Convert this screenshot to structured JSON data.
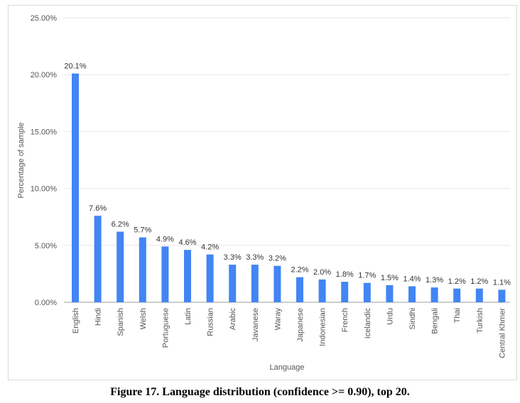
{
  "caption": "Figure 17. Language distribution (confidence >= 0.90), top 20.",
  "chart_data": {
    "type": "bar",
    "xlabel": "Language",
    "ylabel": "Percentage of sample",
    "ylim": [
      0,
      25
    ],
    "yticks": [
      "0.00%",
      "5.00%",
      "10.00%",
      "15.00%",
      "20.00%",
      "25.00%"
    ],
    "grid": true,
    "bar_color": "#4285f4",
    "categories": [
      "English",
      "Hindi",
      "Spanish",
      "Welsh",
      "Portuguese",
      "Latin",
      "Russian",
      "Arabic",
      "Javanese",
      "Waray",
      "Japanese",
      "Indonesian",
      "French",
      "Icelandic",
      "Urdu",
      "Sindhi",
      "Bengali",
      "Thai",
      "Turkish",
      "Central Khmer"
    ],
    "values": [
      20.1,
      7.6,
      6.2,
      5.7,
      4.9,
      4.6,
      4.2,
      3.3,
      3.3,
      3.2,
      2.2,
      2.0,
      1.8,
      1.7,
      1.5,
      1.4,
      1.3,
      1.2,
      1.2,
      1.1
    ],
    "data_labels": [
      "20.1%",
      "7.6%",
      "6.2%",
      "5.7%",
      "4.9%",
      "4.6%",
      "4.2%",
      "3.3%",
      "3.3%",
      "3.2%",
      "2.2%",
      "2.0%",
      "1.8%",
      "1.7%",
      "1.5%",
      "1.4%",
      "1.3%",
      "1.2%",
      "1.2%",
      "1.1%"
    ]
  }
}
